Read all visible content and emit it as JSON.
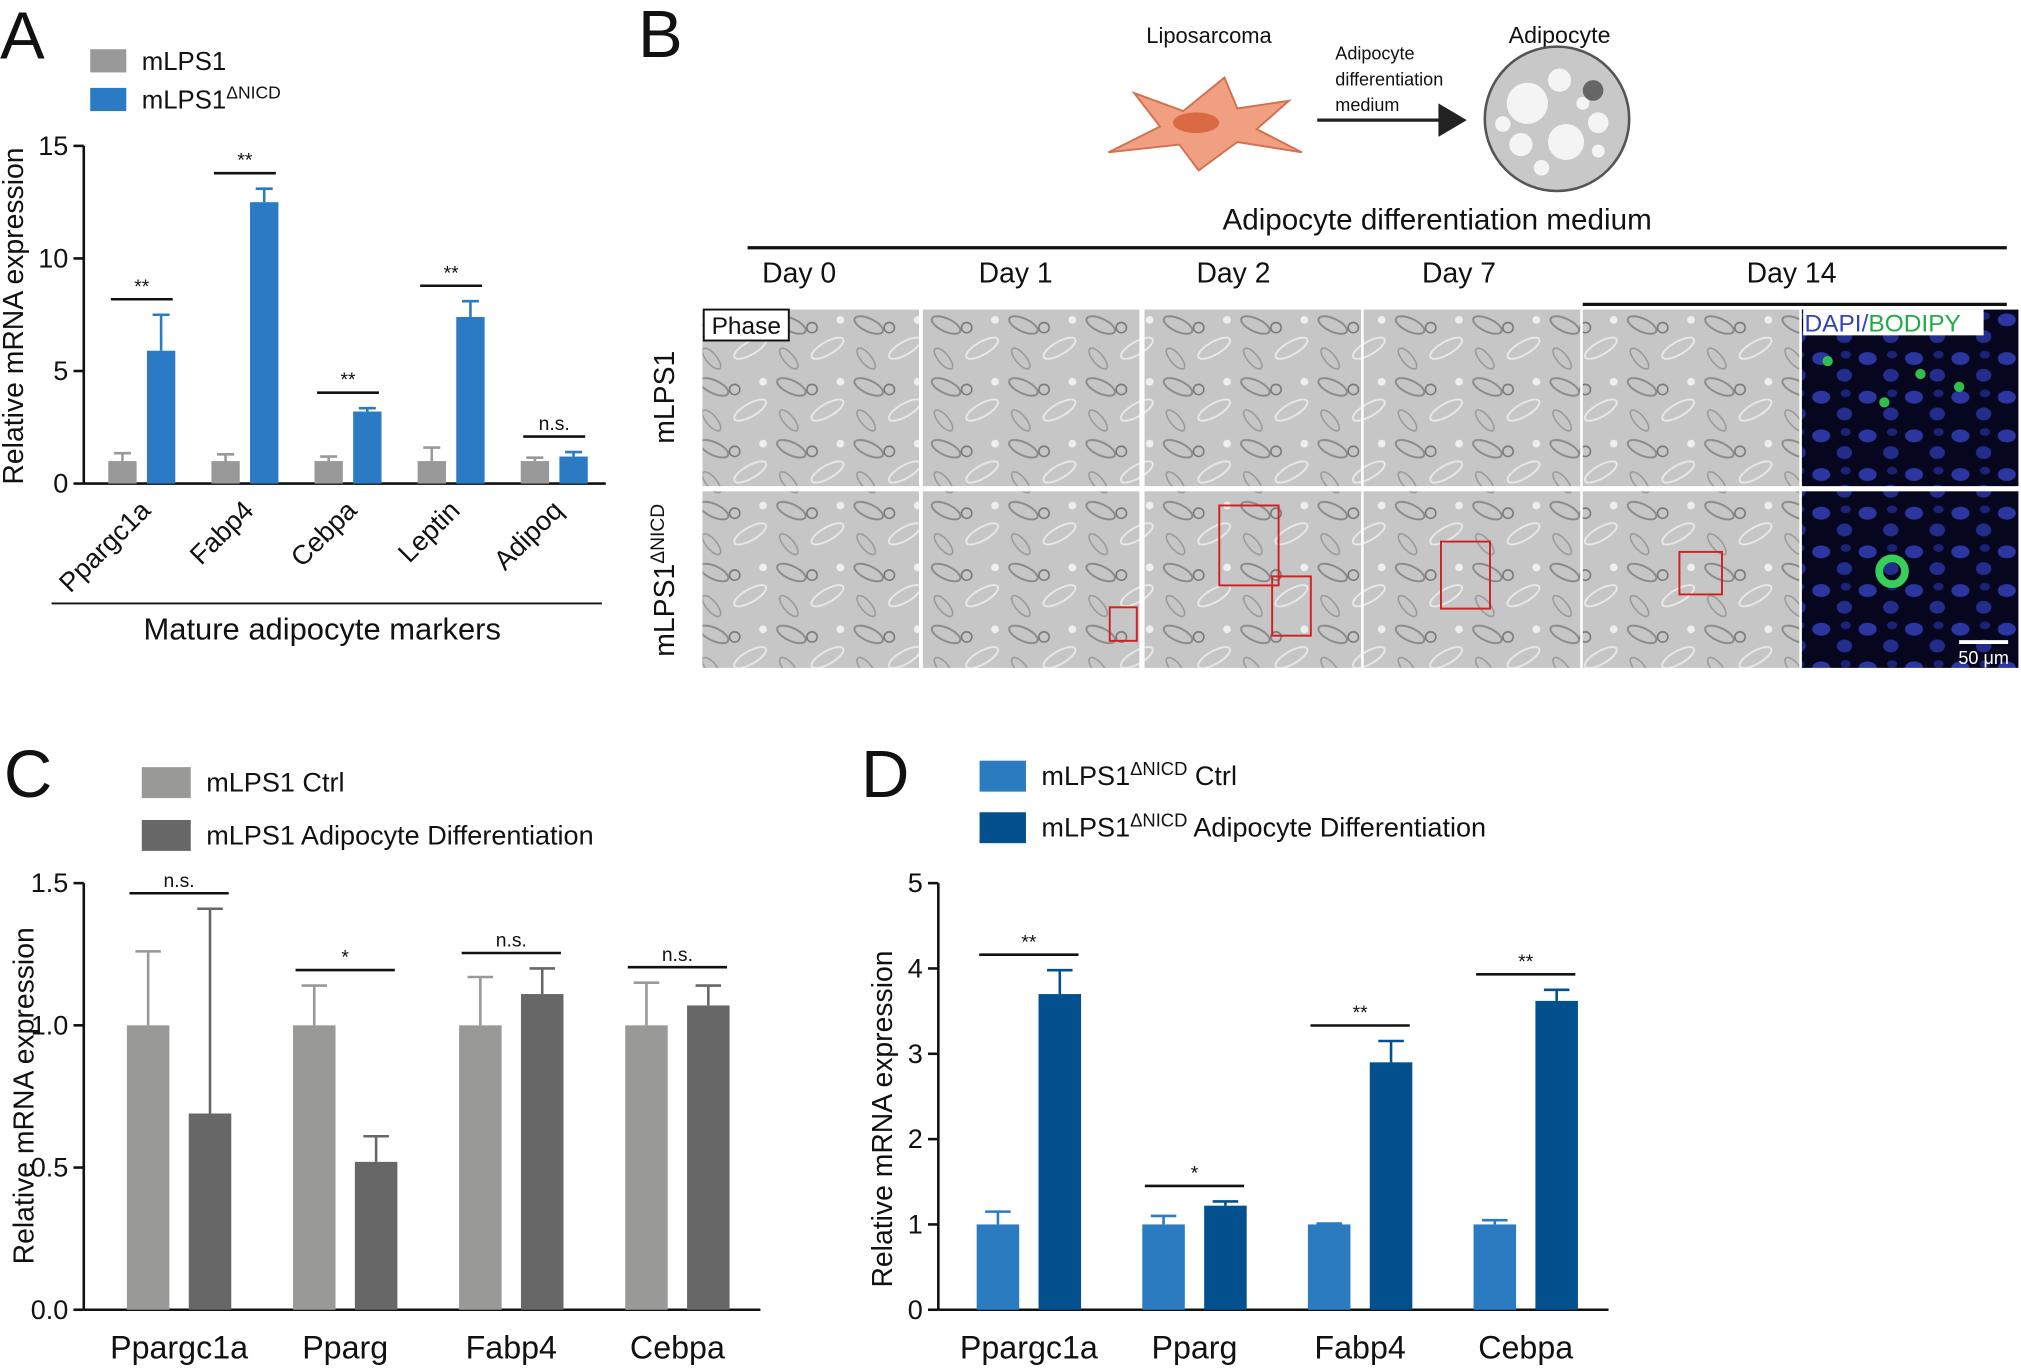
{
  "chart_data": [
    {
      "type": "bar",
      "label": "A",
      "ylabel": "Relative mRNA expression",
      "xlabel": "Mature adipocyte markers",
      "categories": [
        "Ppargc1a",
        "Fabp4",
        "Cebpa",
        "Leptin",
        "Adipoq"
      ],
      "series": [
        {
          "name": "mLPS1",
          "color": "#999999",
          "values": [
            1,
            1,
            1,
            1,
            1
          ],
          "errors": [
            0.35,
            0.3,
            0.2,
            0.6,
            0.15
          ]
        },
        {
          "name": "mLPS1ΔNICD",
          "color": "#2a7bc4",
          "values": [
            5.9,
            12.5,
            3.2,
            7.4,
            1.2
          ],
          "errors": [
            1.6,
            0.6,
            0.15,
            0.7,
            0.2
          ]
        }
      ],
      "significance": [
        "**",
        "**",
        "**",
        "**",
        "n.s."
      ],
      "ylim": [
        0,
        15
      ],
      "yticks": [
        0,
        5,
        10,
        15
      ]
    },
    {
      "type": "bar",
      "label": "C",
      "ylabel": "Relative mRNA expression",
      "categories": [
        "Ppargc1a",
        "Pparg",
        "Fabp4",
        "Cebpa"
      ],
      "series": [
        {
          "name": "mLPS1 Ctrl",
          "color": "#999a98",
          "values": [
            1,
            1,
            1,
            1
          ],
          "errors": [
            0.26,
            0.14,
            0.17,
            0.15
          ]
        },
        {
          "name": "mLPS1 Adipocyte Differentiation",
          "color": "#666766",
          "values": [
            0.69,
            0.52,
            1.11,
            1.07
          ],
          "errors": [
            0.72,
            0.09,
            0.09,
            0.07
          ]
        }
      ],
      "significance": [
        "n.s.",
        "*",
        "n.s.",
        "n.s."
      ],
      "ylim": [
        0,
        1.5
      ],
      "yticks": [
        {
          "value": 0,
          "label": "0.0"
        },
        0.5,
        {
          "value": 1,
          "label": "1.0"
        },
        1.5
      ]
    },
    {
      "type": "bar",
      "label": "D",
      "ylabel": "Relative mRNA expression",
      "categories": [
        "Ppargc1a",
        "Pparg",
        "Fabp4",
        "Cebpa"
      ],
      "series": [
        {
          "name": "mLPS1ΔNICD Ctrl",
          "color": "#2b7bc0",
          "values": [
            1,
            1,
            1,
            1
          ],
          "errors": [
            0.15,
            0.1,
            0.01,
            0.05
          ]
        },
        {
          "name": "mLPS1ΔNICD Adipocyte Differentiation",
          "color": "#03508f",
          "values": [
            3.7,
            1.22,
            2.9,
            3.62
          ],
          "errors": [
            0.28,
            0.05,
            0.25,
            0.13
          ]
        }
      ],
      "significance": [
        "**",
        "*",
        "**",
        "**"
      ],
      "ylim": [
        0,
        5
      ],
      "yticks": [
        0,
        1,
        2,
        3,
        4,
        5
      ]
    }
  ],
  "panel_b": {
    "label": "B",
    "source": "Liposarcoma",
    "target": "Adipocyte",
    "arrow_label": [
      "Adipocyte",
      "differentiation",
      "medium"
    ],
    "header": "Adipocyte differentiation medium",
    "days": [
      "Day 0",
      "Day 1",
      "Day 2",
      "Day 7",
      "Day 14"
    ],
    "rows": [
      "mLPS1",
      "mLPS1ΔNICD"
    ],
    "phase_label": "Phase",
    "stain": [
      "DAPI",
      "/",
      "BODIPY"
    ],
    "scale_bar": "50 μm"
  }
}
